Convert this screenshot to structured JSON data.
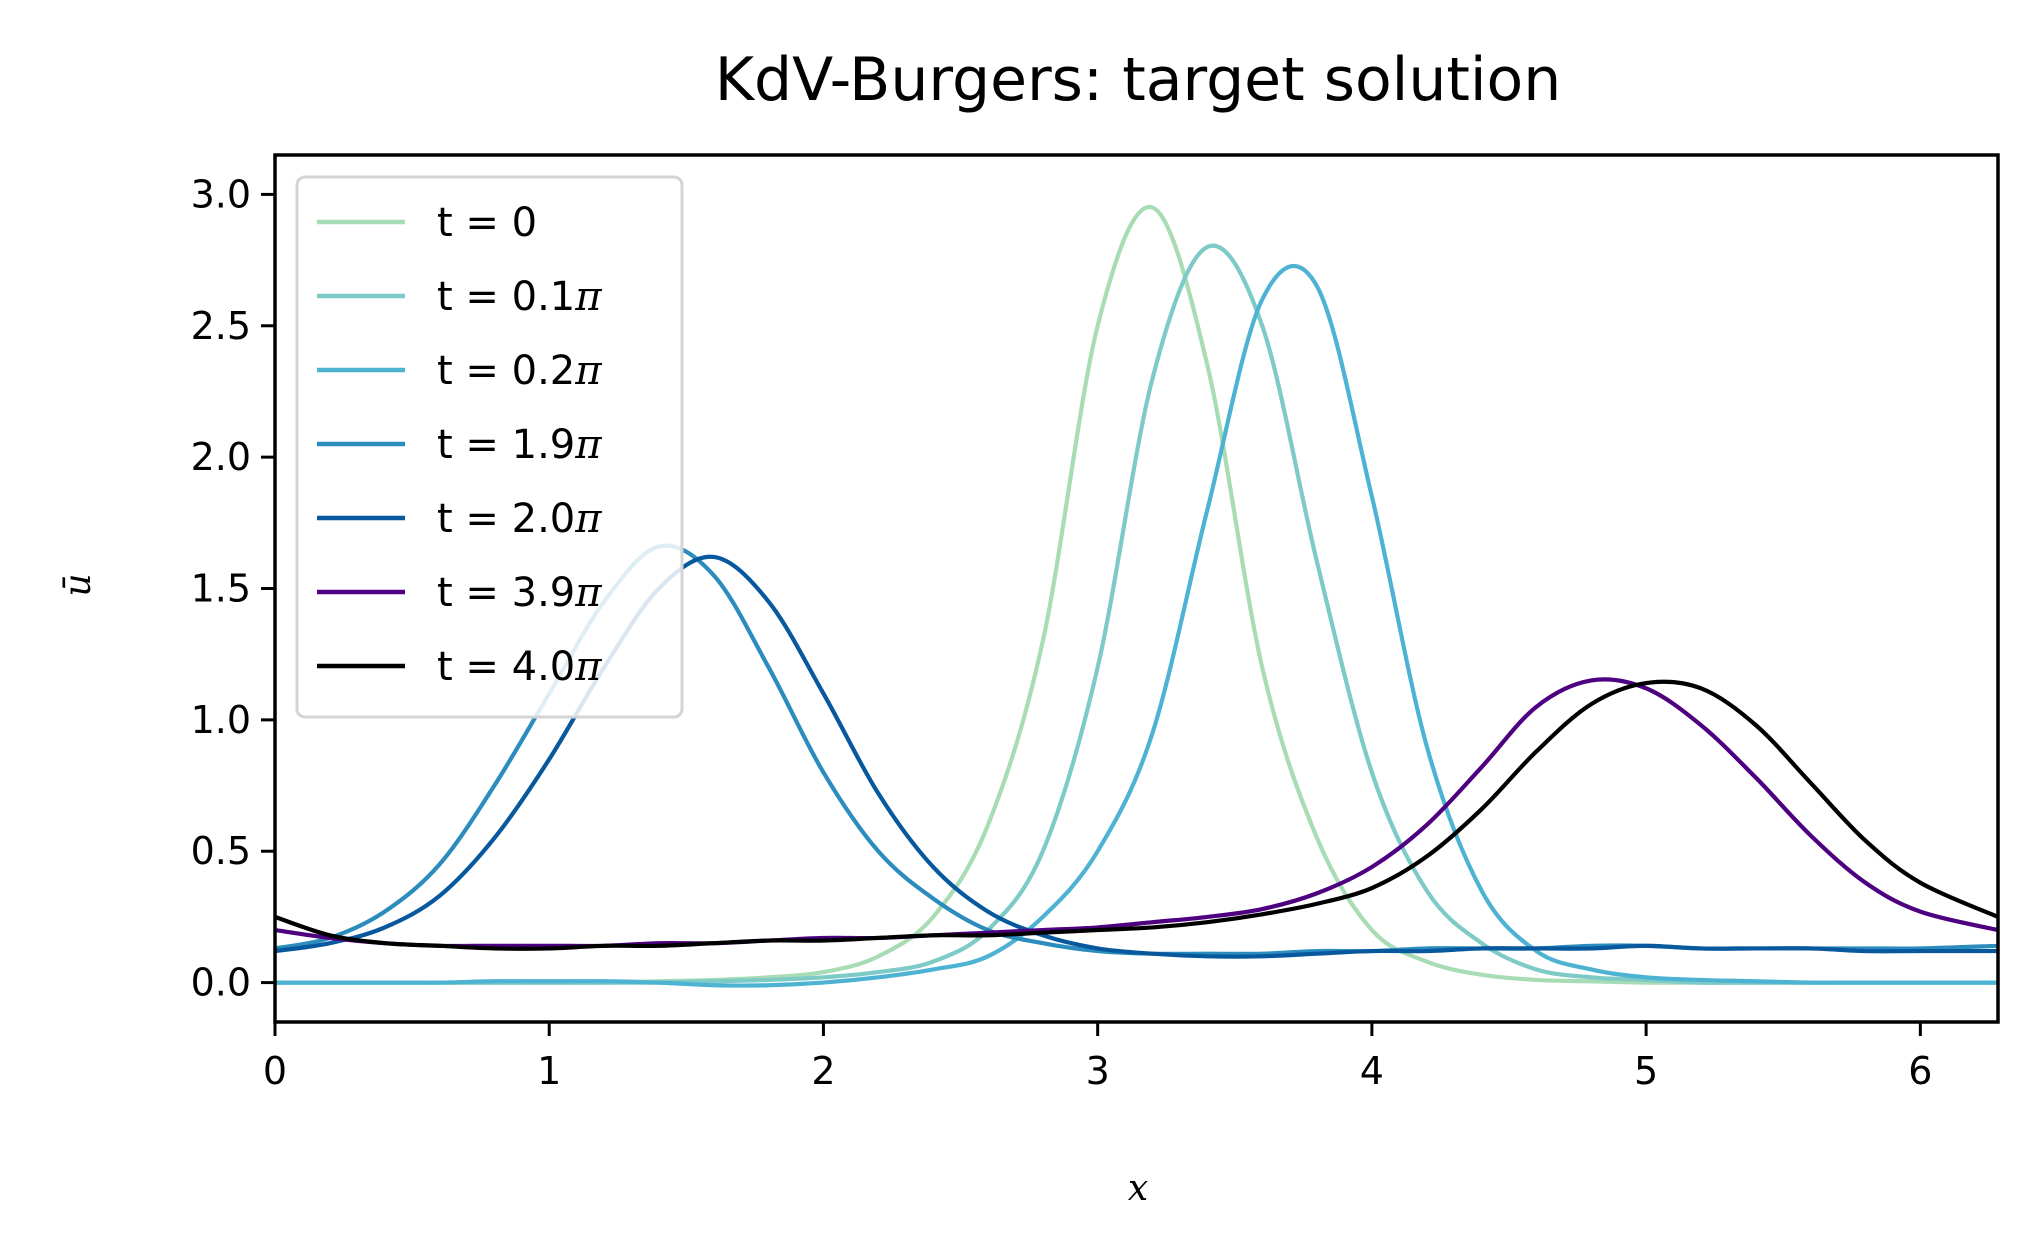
{
  "chart_data": {
    "type": "line",
    "title": "KdV-Burgers: target solution",
    "xlabel": "x",
    "ylabel": "ū",
    "xlim": [
      0,
      6.2832
    ],
    "ylim": [
      -0.15,
      3.15
    ],
    "xticks": [
      0,
      1,
      2,
      3,
      4,
      5,
      6
    ],
    "xtick_labels": [
      "0",
      "1",
      "2",
      "3",
      "4",
      "5",
      "6"
    ],
    "yticks": [
      0.0,
      0.5,
      1.0,
      1.5,
      2.0,
      2.5,
      3.0
    ],
    "ytick_labels": [
      "0.0",
      "0.5",
      "1.0",
      "1.5",
      "2.0",
      "2.5",
      "3.0"
    ],
    "grid": false,
    "legend_position": "upper-left",
    "x": [
      0,
      0.2,
      0.4,
      0.6,
      0.8,
      1.0,
      1.2,
      1.4,
      1.6,
      1.8,
      2.0,
      2.2,
      2.4,
      2.6,
      2.8,
      3.0,
      3.2,
      3.4,
      3.6,
      3.8,
      4.0,
      4.2,
      4.4,
      4.6,
      4.8,
      5.0,
      5.2,
      5.4,
      5.6,
      5.8,
      6.0,
      6.2832
    ],
    "series": [
      {
        "name": "t = 0",
        "label_prefix": "t = 0",
        "label_pi": "",
        "color": "#a8dcb5",
        "values": [
          0,
          0,
          0,
          0,
          0,
          0,
          0,
          0.005,
          0.01,
          0.02,
          0.04,
          0.1,
          0.25,
          0.6,
          1.3,
          2.5,
          2.95,
          2.35,
          1.2,
          0.55,
          0.2,
          0.08,
          0.03,
          0.01,
          0.005,
          0,
          0,
          0,
          0,
          0,
          0,
          0
        ]
      },
      {
        "name": "t = 0.1π",
        "label_prefix": "t = 0.1",
        "label_pi": "π",
        "color": "#7dcac7",
        "values": [
          0,
          0,
          0,
          0,
          0,
          0,
          0,
          0,
          0.005,
          0.01,
          0.02,
          0.04,
          0.08,
          0.2,
          0.5,
          1.2,
          2.3,
          2.8,
          2.5,
          1.6,
          0.8,
          0.35,
          0.15,
          0.05,
          0.02,
          0.01,
          0,
          0,
          0,
          0,
          0,
          0
        ]
      },
      {
        "name": "t = 0.2π",
        "label_prefix": "t = 0.2",
        "label_pi": "π",
        "color": "#4eb3d3",
        "values": [
          0,
          0,
          0,
          0,
          0.005,
          0.005,
          0.005,
          0,
          -0.01,
          -0.01,
          0,
          0.02,
          0.05,
          0.1,
          0.25,
          0.5,
          0.95,
          1.8,
          2.6,
          2.65,
          1.85,
          0.9,
          0.35,
          0.12,
          0.05,
          0.02,
          0.01,
          0.005,
          0,
          0,
          0,
          0
        ]
      },
      {
        "name": "t = 1.9π",
        "label_prefix": "t = 1.9",
        "label_pi": "π",
        "color": "#2b8cbe",
        "values": [
          0.13,
          0.17,
          0.27,
          0.45,
          0.75,
          1.1,
          1.45,
          1.66,
          1.55,
          1.2,
          0.8,
          0.5,
          0.32,
          0.2,
          0.15,
          0.12,
          0.11,
          0.11,
          0.11,
          0.12,
          0.12,
          0.13,
          0.13,
          0.13,
          0.14,
          0.14,
          0.13,
          0.13,
          0.13,
          0.13,
          0.13,
          0.14
        ]
      },
      {
        "name": "t = 2.0π",
        "label_prefix": "t = 2.0",
        "label_pi": "π",
        "color": "#08589e",
        "values": [
          0.12,
          0.15,
          0.21,
          0.33,
          0.55,
          0.85,
          1.2,
          1.5,
          1.62,
          1.45,
          1.1,
          0.72,
          0.44,
          0.27,
          0.18,
          0.13,
          0.11,
          0.1,
          0.1,
          0.11,
          0.12,
          0.12,
          0.13,
          0.13,
          0.13,
          0.14,
          0.13,
          0.13,
          0.13,
          0.12,
          0.12,
          0.12
        ]
      },
      {
        "name": "t = 3.9π",
        "label_prefix": "t = 3.9",
        "label_pi": "π",
        "color": "#4d0080",
        "values": [
          0.2,
          0.17,
          0.15,
          0.14,
          0.14,
          0.14,
          0.14,
          0.15,
          0.15,
          0.16,
          0.17,
          0.17,
          0.18,
          0.19,
          0.2,
          0.21,
          0.23,
          0.25,
          0.28,
          0.34,
          0.44,
          0.6,
          0.82,
          1.05,
          1.15,
          1.12,
          0.98,
          0.78,
          0.56,
          0.38,
          0.27,
          0.2
        ]
      },
      {
        "name": "t = 4.0π",
        "label_prefix": "t = 4.0",
        "label_pi": "π",
        "color": "#000000",
        "values": [
          0.25,
          0.18,
          0.15,
          0.14,
          0.13,
          0.13,
          0.14,
          0.14,
          0.15,
          0.16,
          0.16,
          0.17,
          0.18,
          0.18,
          0.19,
          0.2,
          0.21,
          0.23,
          0.26,
          0.3,
          0.36,
          0.48,
          0.66,
          0.88,
          1.06,
          1.14,
          1.12,
          0.98,
          0.76,
          0.54,
          0.38,
          0.25
        ]
      }
    ]
  }
}
